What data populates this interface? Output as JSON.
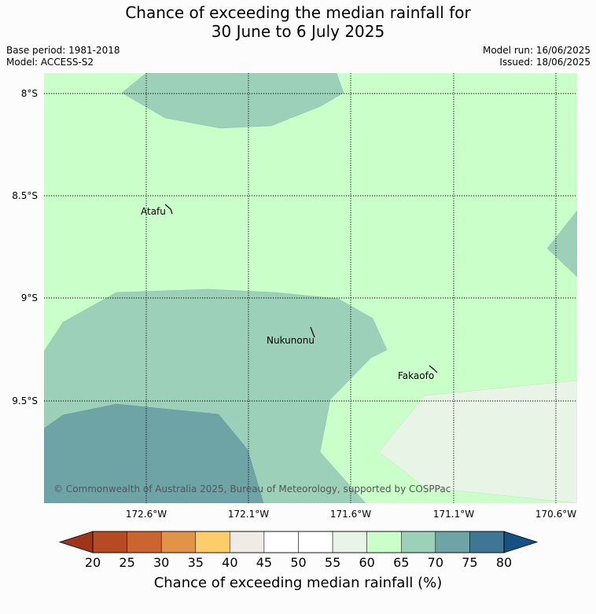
{
  "title_line1": "Chance of exceeding the median rainfall for",
  "title_line2": "30 June to 6 July 2025",
  "base_period": "Base period: 1981-2018",
  "model": "Model: ACCESS-S2",
  "model_run": "Model run: 16/06/2025",
  "issued": "Issued: 18/06/2025",
  "lat_labels": [
    "8°S",
    "8.5°S",
    "9°S",
    "9.5°S"
  ],
  "lon_labels": [
    "172.6°W",
    "172.1°W",
    "171.6°W",
    "171.1°W",
    "170.6°W"
  ],
  "towns": {
    "atafu": "Atafu",
    "nukunonu": "Nukunonu",
    "fakaofo": "Fakaofo"
  },
  "copyright": "© Commonwealth of Australia 2025, Bureau of Meteorology, supported by COSPPac",
  "colorbar": {
    "ticks": [
      "20",
      "25",
      "30",
      "35",
      "40",
      "45",
      "50",
      "55",
      "60",
      "65",
      "70",
      "75",
      "80"
    ],
    "colors": [
      "#a0341b",
      "#b64b23",
      "#cb6530",
      "#e19448",
      "#fdcd67",
      "#efece6",
      "#ffffff",
      "#ffffff",
      "#e8f5e6",
      "#caffca",
      "#9dd0b9",
      "#6ea4a6",
      "#3e7794",
      "#155183"
    ],
    "label": "Chance of exceeding median rainfall (%)"
  },
  "region_colors": {
    "c60_65": "#caffca",
    "c65_70": "#9dd0b9",
    "c70_75": "#6ea4a6",
    "c55_60": "#e8f5e6"
  }
}
